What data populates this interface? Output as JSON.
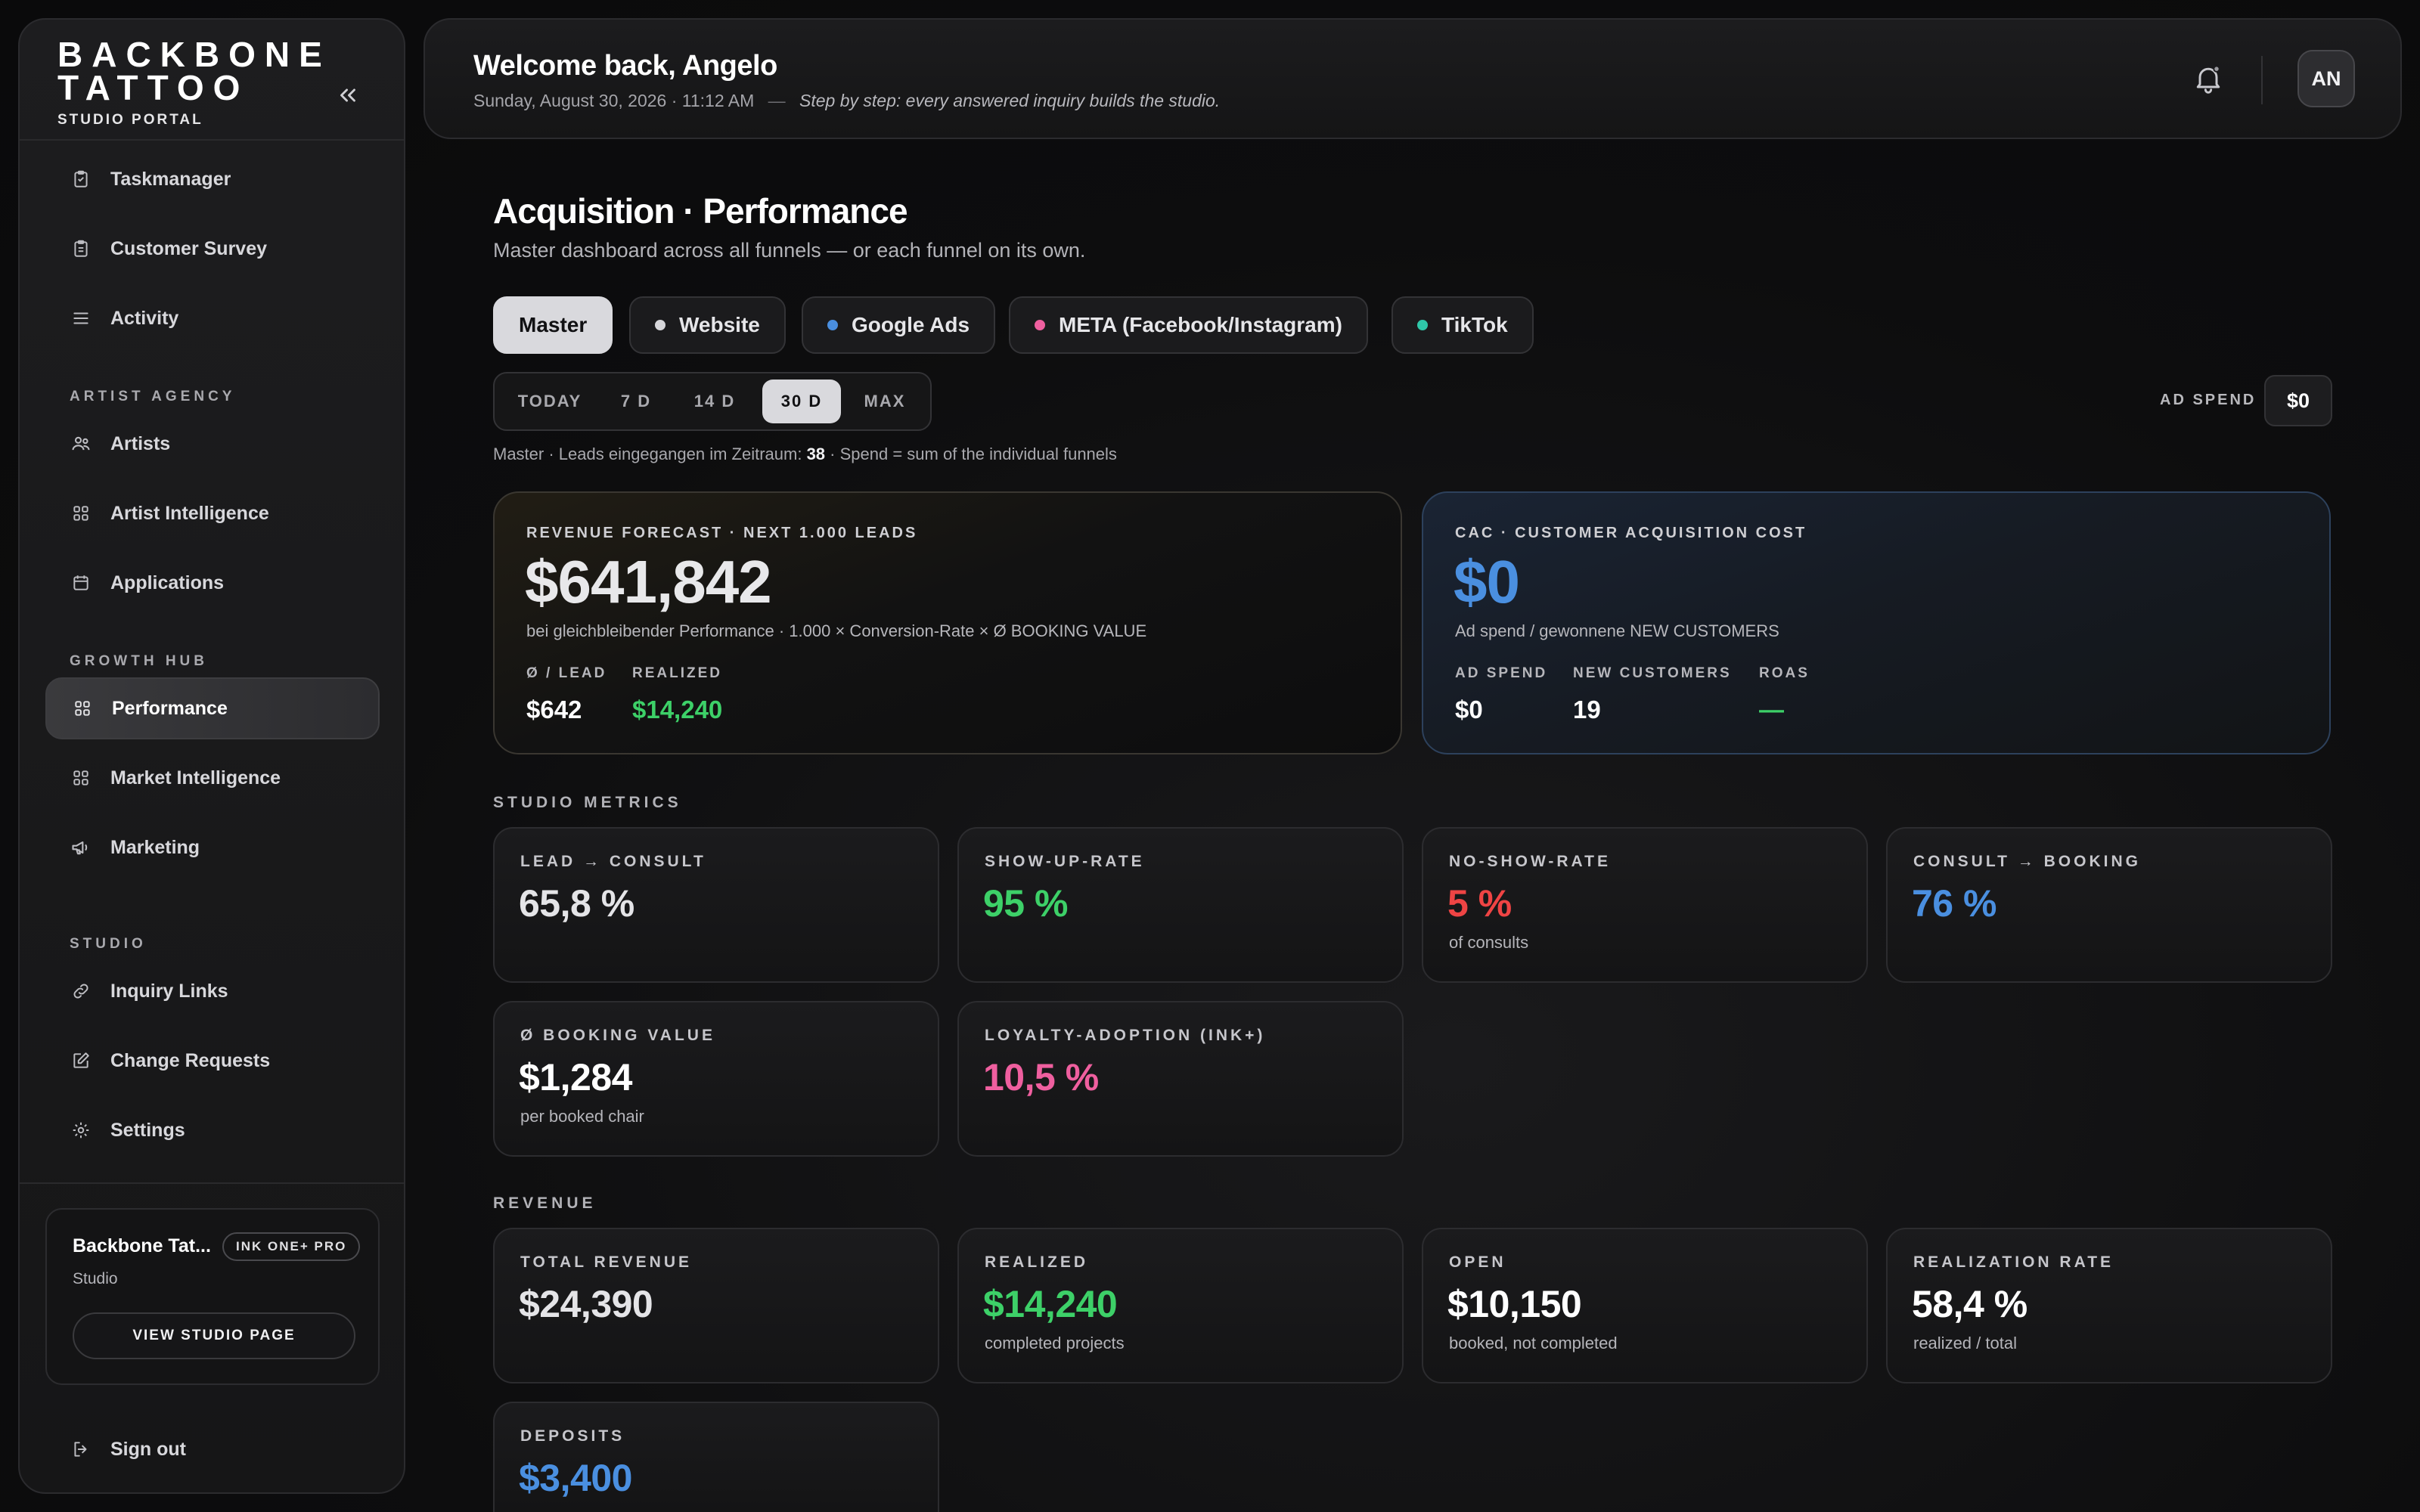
{
  "brand": {
    "line1": "BACKBONE",
    "line2": "TATTOO",
    "sub": "STUDIO PORTAL"
  },
  "sidebar": {
    "top_items": [
      {
        "label": "Taskmanager",
        "icon": "clipboard-icon"
      },
      {
        "label": "Customer Survey",
        "icon": "clipboard-icon"
      },
      {
        "label": "Activity",
        "icon": "list-icon"
      }
    ],
    "sections": [
      {
        "label": "ARTIST AGENCY",
        "items": [
          {
            "label": "Artists",
            "icon": "users-icon"
          },
          {
            "label": "Artist Intelligence",
            "icon": "grid-icon"
          },
          {
            "label": "Applications",
            "icon": "calendar-icon"
          }
        ]
      },
      {
        "label": "GROWTH HUB",
        "items": [
          {
            "label": "Performance",
            "icon": "grid-icon",
            "active": true
          },
          {
            "label": "Market Intelligence",
            "icon": "grid-icon"
          },
          {
            "label": "Marketing",
            "icon": "megaphone-icon"
          }
        ]
      },
      {
        "label": "STUDIO",
        "items": [
          {
            "label": "Inquiry Links",
            "icon": "link-icon"
          },
          {
            "label": "Change Requests",
            "icon": "edit-icon"
          },
          {
            "label": "Settings",
            "icon": "gear-icon"
          }
        ]
      }
    ],
    "studio_card": {
      "name": "Backbone Tat...",
      "badge": "INK ONE+ PRO",
      "type": "Studio",
      "button": "VIEW STUDIO PAGE"
    },
    "signout": "Sign out"
  },
  "header": {
    "welcome": "Welcome back, Angelo",
    "date": "Sunday, August 30, 2026 · 11:12 AM",
    "separator": "—",
    "tagline": "Step by step: every answered inquiry builds the studio.",
    "avatar": "AN"
  },
  "main": {
    "title": "Acquisition · Performance",
    "subtitle": "Master dashboard across all funnels — or each funnel on its own.",
    "funnels": [
      {
        "label": "Master",
        "active": true
      },
      {
        "label": "Website",
        "dot": "#d6d6da"
      },
      {
        "label": "Google Ads",
        "dot": "#4a8fe0"
      },
      {
        "label": "META (Facebook/Instagram)",
        "dot": "#ef5f9f"
      },
      {
        "label": "TikTok",
        "dot": "#2fc7a9"
      }
    ],
    "ranges": [
      {
        "label": "TODAY"
      },
      {
        "label": "7 D"
      },
      {
        "label": "14 D"
      },
      {
        "label": "30 D",
        "active": true
      },
      {
        "label": "MAX"
      }
    ],
    "ad_spend": {
      "label": "AD SPEND",
      "value": "$0"
    },
    "info": {
      "prefix": "Master · Leads eingegangen im Zeitraum:",
      "leads": "38",
      "suffix": "· Spend = sum of the individual funnels"
    },
    "forecast": {
      "label": "REVENUE FORECAST · NEXT 1.000 LEADS",
      "value": "$641,842",
      "note": "bei gleichbleibender Performance · 1.000 × Conversion-Rate × Ø BOOKING VALUE",
      "per_lead_label": "Ø / LEAD",
      "per_lead_value": "$642",
      "realized_label": "REALIZED",
      "realized_value": "$14,240"
    },
    "cac": {
      "label": "CAC · CUSTOMER ACQUISITION COST",
      "value": "$0",
      "note": "Ad spend / gewonnene NEW CUSTOMERS",
      "ad_spend_label": "AD SPEND",
      "ad_spend_value": "$0",
      "new_customers_label": "NEW CUSTOMERS",
      "new_customers_value": "19",
      "roas_label": "ROAS",
      "roas_value": "—"
    },
    "studio_metrics_label": "STUDIO METRICS",
    "studio_metrics": [
      {
        "label": "LEAD → CONSULT",
        "value": "65,8 %",
        "note": "",
        "color": "white"
      },
      {
        "label": "SHOW-UP-RATE",
        "value": "95 %",
        "note": "",
        "color": "green"
      },
      {
        "label": "NO-SHOW-RATE",
        "value": "5 %",
        "note": "of consults",
        "color": "red"
      },
      {
        "label": "CONSULT → BOOKING",
        "value": "76 %",
        "note": "",
        "color": "blue"
      },
      {
        "label": "Ø BOOKING VALUE",
        "value": "$1,284",
        "note": "per booked chair",
        "color": "white"
      },
      {
        "label": "LOYALTY-ADOPTION (INK+)",
        "value": "10,5 %",
        "note": "",
        "color": "pink"
      }
    ],
    "revenue_label": "REVENUE",
    "revenue": [
      {
        "label": "TOTAL REVENUE",
        "value": "$24,390",
        "note": "",
        "color": "white"
      },
      {
        "label": "REALIZED",
        "value": "$14,240",
        "note": "completed projects",
        "color": "green"
      },
      {
        "label": "OPEN",
        "value": "$10,150",
        "note": "booked, not completed",
        "color": "white"
      },
      {
        "label": "REALIZATION RATE",
        "value": "58,4 %",
        "note": "realized / total",
        "color": "white"
      },
      {
        "label": "DEPOSITS",
        "value": "$3,400",
        "note": "",
        "color": "blue"
      }
    ]
  }
}
